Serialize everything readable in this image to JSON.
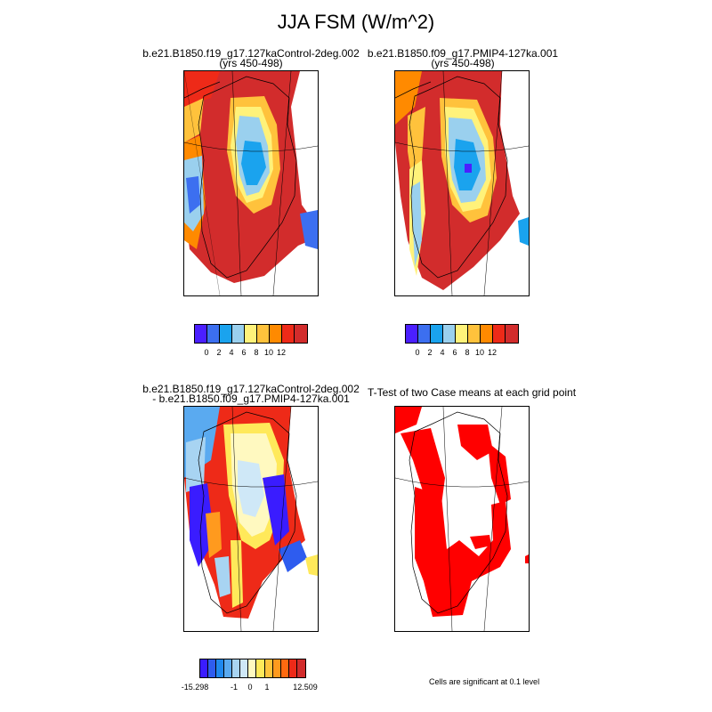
{
  "figure": {
    "title": "JJA FSM (W/m^2)",
    "panels": [
      {
        "id": "control",
        "title_line1": "b.e21.B1850.f19_g17.127kaControl-2deg.002",
        "title_line2": "(yrs 450-498)"
      },
      {
        "id": "pmip4",
        "title_line1": "b.e21.B1850.f09_g17.PMIP4-127ka.001",
        "title_line2": "(yrs 450-498)"
      },
      {
        "id": "difference",
        "title_line1": "b.e21.B1850.f19_g17.127kaControl-2deg.002",
        "title_line2": "- b.e21.B1850.f09_g17.PMIP4-127ka.001"
      },
      {
        "id": "ttest",
        "title_line1": "T-Test of two Case means at each grid point",
        "title_line2": ""
      }
    ],
    "colorbar_top": {
      "colors": [
        "#4b1fff",
        "#3c6ff0",
        "#1aa3ee",
        "#9ad0ee",
        "#fff27a",
        "#ffc23c",
        "#ff8a00",
        "#ee2a18",
        "#d22c2c"
      ],
      "labels": [
        "0",
        "2",
        "4",
        "6",
        "8",
        "10",
        "12"
      ]
    },
    "colorbar_diff": {
      "colors": [
        "#3a1cff",
        "#2e5cef",
        "#1f88ee",
        "#5aaaf0",
        "#a8d4f2",
        "#cfe8f7",
        "#fff9c0",
        "#ffe95a",
        "#ffc43c",
        "#ff9a1e",
        "#ff6a10",
        "#ee2a18",
        "#d22c2c"
      ],
      "labels": [
        "-15.298",
        "-1",
        "0",
        "1",
        "12.509"
      ]
    },
    "significance_note": "Cells are significant at 0.1 level",
    "significance_color": "#ff0000"
  },
  "chart_data": [
    {
      "type": "heatmap",
      "title": "b.e21.B1850.f19_g17.127kaControl-2deg.002 (yrs 450-498)",
      "colorbar_levels": [
        0,
        2,
        4,
        6,
        8,
        10,
        12
      ],
      "description_values": {
        "interior_min": 0,
        "coastal_max": 12
      }
    },
    {
      "type": "heatmap",
      "title": "b.e21.B1850.f09_g17.PMIP4-127ka.001 (yrs 450-498)",
      "colorbar_levels": [
        0,
        2,
        4,
        6,
        8,
        10,
        12
      ],
      "description_values": {
        "interior_min": 0,
        "coastal_max": 12
      }
    },
    {
      "type": "heatmap",
      "title": "b.e21.B1850.f19_g17.127kaControl-2deg.002 - b.e21.B1850.f09_g17.PMIP4-127ka.001",
      "colorbar_levels": [
        -15.298,
        -1,
        0,
        1,
        12.509
      ]
    },
    {
      "type": "heatmap",
      "title": "T-Test of two Case means at each grid point",
      "note": "Cells are significant at 0.1 level"
    }
  ]
}
